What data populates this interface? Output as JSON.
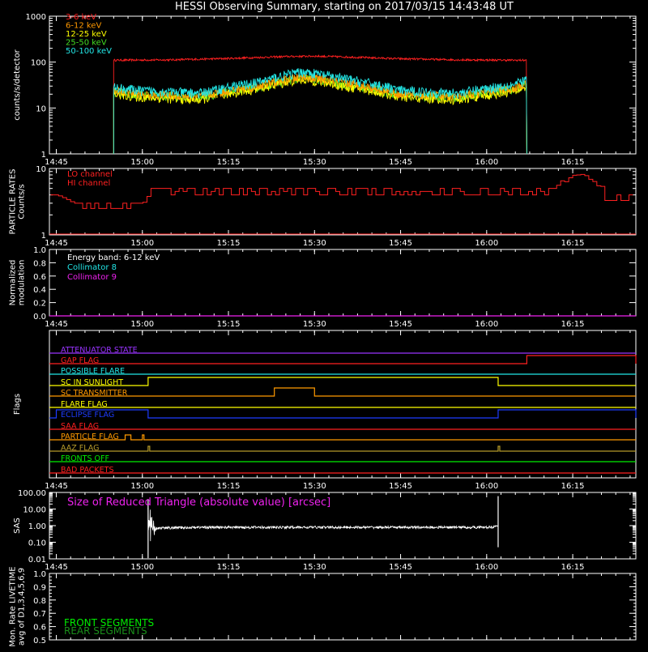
{
  "title": "HESSI Observing Summary, starting on 2017/03/15 14:43:48 UT",
  "time_ticks": [
    "14:45",
    "15:00",
    "15:15",
    "15:30",
    "15:45",
    "16:00",
    "16:15"
  ],
  "colors": {
    "background": "#000000",
    "axes": "#ffffff",
    "red": "#ff2020",
    "orange": "#ff9900",
    "yellow": "#ffff00",
    "green": "#44dd22",
    "cyan": "#22e6e6",
    "magenta": "#ee22ee",
    "blue": "#1e3cff",
    "purple": "#9933ff",
    "olive": "#b59a2a",
    "bright_green": "#00ee00"
  },
  "chart_data": [
    {
      "type": "line",
      "panel": "count_rates",
      "ylabel": "counts/s/detector",
      "yscale": "log",
      "ylim": [
        1,
        1000
      ],
      "y_ticks": [
        "1",
        "10",
        "100",
        "1000"
      ],
      "x_range": [
        "14:43:48",
        "16:26"
      ],
      "data_start": "14:55",
      "data_end": "16:07",
      "series": [
        {
          "name": "3-6 keV",
          "color": "#ff2020",
          "x": [
            "14:55",
            "15:05",
            "15:15",
            "15:25",
            "15:30",
            "15:35",
            "15:45",
            "15:55",
            "16:05",
            "16:07"
          ],
          "values": [
            110,
            112,
            120,
            132,
            135,
            130,
            118,
            112,
            110,
            110
          ]
        },
        {
          "name": "6-12 keV",
          "color": "#ff9900",
          "x": [
            "14:55",
            "15:00",
            "15:10",
            "15:20",
            "15:28",
            "15:35",
            "15:45",
            "15:55",
            "16:05",
            "16:07"
          ],
          "values": [
            24,
            20,
            18,
            30,
            48,
            36,
            20,
            18,
            28,
            35
          ]
        },
        {
          "name": "12-25 keV",
          "color": "#ffff00",
          "x": [
            "14:55",
            "15:00",
            "15:10",
            "15:20",
            "15:28",
            "15:35",
            "15:45",
            "15:55",
            "16:05",
            "16:07"
          ],
          "values": [
            20,
            17,
            15,
            26,
            42,
            30,
            17,
            15,
            23,
            30
          ]
        },
        {
          "name": "25-50 keV",
          "color": "#44dd22",
          "x": [
            "14:55",
            "15:00",
            "15:10",
            "15:20",
            "15:28",
            "15:35",
            "15:45",
            "15:55",
            "16:05",
            "16:07"
          ],
          "values": [
            22,
            19,
            17,
            28,
            46,
            33,
            19,
            17,
            26,
            33
          ]
        },
        {
          "name": "50-100 keV",
          "color": "#22e6e6",
          "x": [
            "14:55",
            "15:00",
            "15:10",
            "15:20",
            "15:28",
            "15:35",
            "15:45",
            "15:55",
            "16:05",
            "16:07"
          ],
          "values": [
            28,
            24,
            21,
            36,
            62,
            44,
            24,
            21,
            33,
            42
          ]
        }
      ]
    },
    {
      "type": "line",
      "panel": "particle_rates",
      "ylabel": "PARTICLE RATES Counts/s",
      "yscale": "log",
      "ylim": [
        1,
        10
      ],
      "y_ticks": [
        "1",
        "10"
      ],
      "series": [
        {
          "name": "LO channel",
          "color": "#ff2020",
          "x": [
            "14:45",
            "14:48",
            "14:54",
            "15:00",
            "15:02",
            "15:30",
            "15:45",
            "16:00",
            "16:15",
            "16:20",
            "16:26"
          ],
          "values": [
            4,
            3,
            3,
            3,
            5,
            5,
            4,
            4,
            8,
            4,
            4
          ]
        },
        {
          "name": "HI channel",
          "color": "#ff2020",
          "x": [
            "14:45",
            "16:26"
          ],
          "values": [
            1,
            1
          ]
        }
      ]
    },
    {
      "type": "line",
      "panel": "modulation",
      "ylabel": "Normalized modulation",
      "ylim": [
        0,
        1
      ],
      "y_ticks": [
        "0.0",
        "0.2",
        "0.4",
        "0.6",
        "0.8",
        "1.0"
      ],
      "annotation": "Energy band: 6-12 keV",
      "series": [
        {
          "name": "Collimator 8",
          "color": "#22e6e6",
          "x": [
            "14:45",
            "16:26"
          ],
          "values": [
            0,
            0
          ]
        },
        {
          "name": "Collimator 9",
          "color": "#ee22ee",
          "x": [
            "14:45",
            "16:26"
          ],
          "values": [
            0,
            0
          ]
        }
      ]
    },
    {
      "type": "line",
      "panel": "flags",
      "ylabel": "Flags",
      "flags": [
        {
          "label": "ATTENUATOR STATE",
          "color": "#9933ff",
          "on": []
        },
        {
          "label": "GAP FLAG",
          "color": "#ff2020",
          "on": [
            [
              "16:07",
              "16:26"
            ]
          ]
        },
        {
          "label": "POSSIBLE FLARE",
          "color": "#22e6e6",
          "on": []
        },
        {
          "label": "SC IN SUNLIGHT",
          "color": "#ffff00",
          "on": [
            [
              "15:01",
              "16:02"
            ]
          ]
        },
        {
          "label": "SC TRANSMITTER",
          "color": "#ff9900",
          "on": [
            [
              "15:23",
              "15:30"
            ]
          ]
        },
        {
          "label": "FLARE FLAG",
          "color": "#ffff00",
          "on": []
        },
        {
          "label": "ECLIPSE FLAG",
          "color": "#1e3cff",
          "on": [
            [
              "14:45",
              "15:01"
            ],
            [
              "16:02",
              "16:26"
            ]
          ]
        },
        {
          "label": "SAA FLAG",
          "color": "#ff2020",
          "on": []
        },
        {
          "label": "PARTICLE FLAG",
          "color": "#ff9900",
          "on": [
            [
              "14:57",
              "14:58"
            ],
            [
              "15:00",
              "15:00"
            ]
          ]
        },
        {
          "label": "AAZ FLAG",
          "color": "#b59a2a",
          "on": [
            [
              "15:01",
              "15:01"
            ],
            [
              "16:02",
              "16:02"
            ]
          ]
        },
        {
          "label": "FRONTS OFF",
          "color": "#00ee00",
          "on": []
        },
        {
          "label": "BAD PACKETS",
          "color": "#ff2020",
          "on": []
        }
      ]
    },
    {
      "type": "line",
      "panel": "sas",
      "ylabel": "SAS",
      "yscale": "log",
      "ylim": [
        0.01,
        100
      ],
      "y_ticks": [
        "0.01",
        "0.10",
        "1.00",
        "10.00",
        "100.00"
      ],
      "annotation": "Size of Reduced Triangle (absolute value) [arcsec]",
      "series": [
        {
          "name": "SAS triangle",
          "color": "#ffffff",
          "x": [
            "15:01",
            "15:02",
            "15:10",
            "15:30",
            "16:00",
            "16:02"
          ],
          "values": [
            0.8,
            0.7,
            0.8,
            0.8,
            0.8,
            0.9
          ]
        }
      ]
    },
    {
      "type": "line",
      "panel": "livetime",
      "ylabel": "Mon. Rate LIVETIME avg of D1,3,4,5,6,9",
      "ylim": [
        0.5,
        1.0
      ],
      "y_ticks": [
        "0.5",
        "0.6",
        "0.7",
        "0.8",
        "0.9",
        "1.0"
      ],
      "series": [
        {
          "name": "FRONT SEGMENTS",
          "color": "#00ee00",
          "x": [],
          "values": []
        },
        {
          "name": "REAR SEGMENTS",
          "color": "#1a8f1a",
          "x": [],
          "values": []
        }
      ]
    }
  ]
}
